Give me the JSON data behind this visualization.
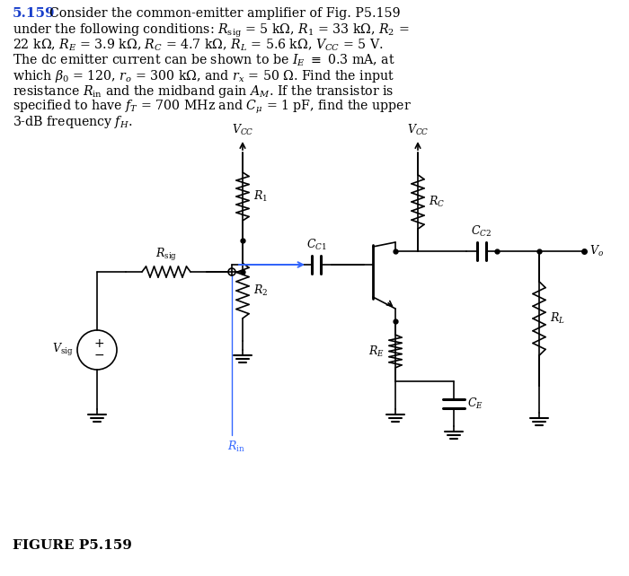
{
  "bg_color": "#ffffff",
  "text_color": "#000000",
  "blue_color": "#3366ff",
  "title": "5.159",
  "lines": [
    "Consider the common-emitter amplifier of Fig. P5.159",
    "under the following conditions: $R_\\mathrm{sig}$ = 5 k$\\Omega$, $R_1$ = 33 k$\\Omega$, $R_2$ =",
    "22 k$\\Omega$, $R_E$ = 3.9 k$\\Omega$, $R_C$ = 4.7 k$\\Omega$, $R_L$ = 5.6 k$\\Omega$, $V_{CC}$ = 5 V.",
    "The dc emitter current can be shown to be $I_E$ $\\equiv$ 0.3 mA, at",
    "which $\\beta_0$ = 120, $r_o$ = 300 k$\\Omega$, and $r_x$ = 50 $\\Omega$. Find the input",
    "resistance $R_\\mathrm{in}$ and the midband gain $A_M$. If the transistor is",
    "specified to have $f_T$ = 700 MHz and $C_\\mu$ = 1 pF, find the upper",
    "3-dB frequency $f_H$."
  ],
  "figure_label": "FIGURE P5.159"
}
